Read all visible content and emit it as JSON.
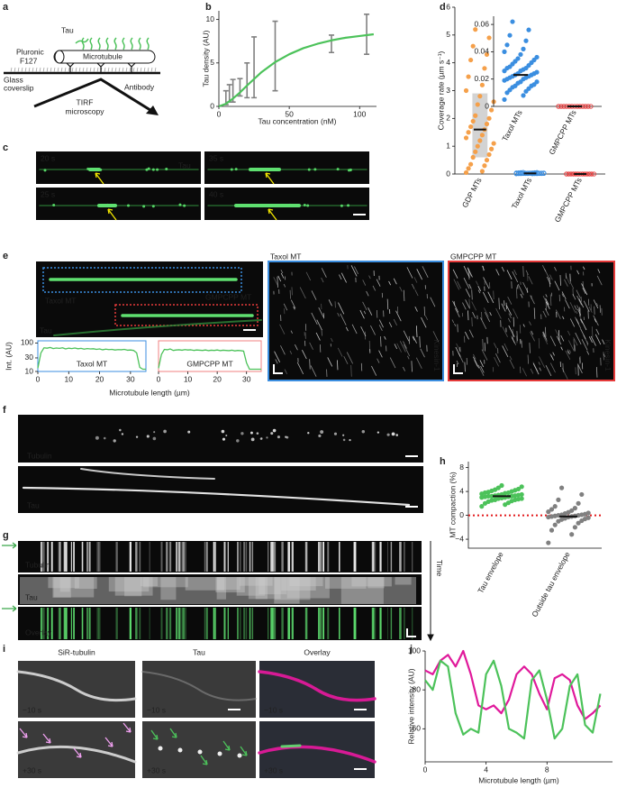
{
  "panel_labels": [
    "a",
    "b",
    "c",
    "d",
    "e",
    "f",
    "g",
    "h",
    "i",
    "j"
  ],
  "schematic": {
    "tau": "Tau",
    "pluronic": "Pluronic",
    "f127": "F127",
    "microtubule": "Microtubule",
    "coverslip_1": "Glass",
    "coverslip_2": "coverslip",
    "antibody": "Antibody",
    "tirf_1": "TIRF",
    "tirf_2": "microscopy"
  },
  "timelapse_c": {
    "times": [
      "20 s",
      "35 s",
      "25 s",
      "40 s"
    ],
    "channel": "Tau"
  },
  "image_e": {
    "taxol": "Taxol MT",
    "gmpcpp": "GMPCPP MT",
    "channel": "Tau",
    "kymo_titles": [
      "Taxol MT",
      "GMPCPP MT"
    ],
    "kymo_channel": [
      "Kinesin-1",
      "Kinesin-1"
    ]
  },
  "image_f": {
    "channels": [
      "Tubulin",
      "Tau"
    ]
  },
  "kymo_g": {
    "channels": [
      "Tubulin",
      "Tau",
      "Overlay"
    ],
    "time": "Time"
  },
  "image_i": {
    "columns": [
      "SiR-tubulin",
      "Tau",
      "Overlay"
    ],
    "times": [
      "−10 s",
      "+30 s"
    ]
  },
  "chart_data": [
    {
      "type": "line",
      "xlabel": "Tau concentration (nM)",
      "ylabel": "Tau density (AU)",
      "xlim": [
        0,
        112
      ],
      "ylim": [
        0,
        11
      ],
      "xticks": [
        0,
        50,
        100
      ],
      "yticks": [
        0,
        5,
        10
      ],
      "series": [
        {
          "style": "errorbar",
          "color": "#808080",
          "x": [
            5,
            7.5,
            10,
            15,
            20,
            25,
            40,
            80,
            105
          ],
          "values": [
            1.0,
            1.5,
            1.8,
            2.2,
            3.0,
            4.5,
            5.8,
            7.2,
            8.3
          ],
          "errors": [
            0.8,
            1.0,
            1.3,
            1.0,
            2.0,
            3.5,
            4.0,
            1.0,
            2.3
          ]
        },
        {
          "style": "line",
          "color": "#4cc25a",
          "x": [
            0,
            5,
            10,
            15,
            20,
            30,
            40,
            50,
            60,
            70,
            80,
            90,
            100,
            110
          ],
          "values": [
            0,
            0.3,
            0.9,
            1.6,
            2.4,
            3.9,
            5.1,
            6.0,
            6.7,
            7.2,
            7.6,
            7.9,
            8.1,
            8.3
          ]
        }
      ]
    },
    {
      "type": "strip",
      "ylabel": "Coverage rate (µm s⁻¹)",
      "ylim": [
        0,
        6
      ],
      "yticks": [
        0,
        1,
        2,
        3,
        4,
        5,
        6
      ],
      "categories": [
        "GDP MTs",
        "Taxol MTs",
        "GMPCPP MTs"
      ],
      "groups": [
        {
          "color": "#f5a04a",
          "hollow": false,
          "median": 1.6,
          "box": [
            0.6,
            2.9
          ],
          "values": [
            0.05,
            0.1,
            0.2,
            0.3,
            0.35,
            0.5,
            0.6,
            0.7,
            0.8,
            0.9,
            1.0,
            1.1,
            1.2,
            1.3,
            1.4,
            1.5,
            1.6,
            1.7,
            1.8,
            1.9,
            2.0,
            2.1,
            2.3,
            2.5,
            2.6,
            2.8,
            3.0,
            3.2,
            3.5,
            3.8,
            4.1,
            4.3,
            4.6,
            4.9,
            5.2
          ]
        },
        {
          "color": "#3b8ee0",
          "hollow": true,
          "median": 0.023,
          "values": [
            0.005,
            0.008,
            0.01,
            0.011,
            0.012,
            0.013,
            0.014,
            0.015,
            0.015,
            0.016,
            0.017,
            0.018,
            0.018,
            0.019,
            0.02,
            0.02,
            0.021,
            0.021,
            0.022,
            0.022,
            0.023,
            0.023,
            0.024,
            0.024,
            0.025,
            0.026,
            0.026,
            0.027,
            0.028,
            0.028,
            0.029,
            0.03,
            0.031,
            0.032,
            0.033,
            0.034,
            0.035,
            0.036,
            0.038,
            0.04,
            0.042,
            0.045,
            0.048,
            0.052,
            0.056,
            0.062
          ]
        },
        {
          "color": "#e63a3a",
          "hollow": true,
          "median": 0,
          "values": [
            0,
            0,
            0,
            0,
            0,
            0,
            0,
            0,
            0,
            0,
            0,
            0,
            0,
            0,
            0,
            0,
            0,
            0,
            0,
            0,
            0,
            0,
            0,
            0
          ]
        }
      ]
    },
    {
      "type": "strip",
      "ylim": [
        0,
        0.066
      ],
      "yticks": [
        0,
        0.02,
        0.04,
        0.06
      ],
      "categories": [
        "Taxol MTs",
        "GMPCPP MTs"
      ],
      "groups": [
        {
          "color": "#3b8ee0",
          "hollow": false,
          "median": 0.023,
          "values": [
            0.005,
            0.008,
            0.01,
            0.011,
            0.012,
            0.013,
            0.014,
            0.015,
            0.015,
            0.016,
            0.017,
            0.018,
            0.018,
            0.019,
            0.02,
            0.02,
            0.021,
            0.021,
            0.022,
            0.022,
            0.023,
            0.023,
            0.024,
            0.024,
            0.025,
            0.026,
            0.026,
            0.027,
            0.028,
            0.028,
            0.029,
            0.03,
            0.031,
            0.032,
            0.033,
            0.034,
            0.035,
            0.036,
            0.038,
            0.04,
            0.042,
            0.045,
            0.048,
            0.052,
            0.056,
            0.062
          ]
        },
        {
          "color": "#e63a3a",
          "hollow": true,
          "median": 0,
          "values": [
            0,
            0,
            0,
            0,
            0,
            0,
            0,
            0,
            0,
            0,
            0,
            0,
            0,
            0,
            0,
            0,
            0,
            0,
            0,
            0,
            0,
            0,
            0,
            0
          ]
        }
      ]
    },
    {
      "type": "line",
      "label": "Taxol MT",
      "label_color": "#3b8ee0",
      "frame": "#3b8ee0",
      "log": true,
      "xlabel": "Microtubule length (µm)",
      "ylabel": "Int. (AU)",
      "xlim": [
        0,
        35
      ],
      "ylim": [
        10,
        120
      ],
      "xticks": [
        0,
        10,
        20,
        30
      ],
      "yticks": [
        10,
        30,
        100
      ],
      "series": [
        {
          "style": "line",
          "color": "#4cc25a",
          "x": [
            0,
            1,
            2,
            3,
            4,
            5,
            6,
            7,
            8,
            9,
            10,
            11,
            12,
            13,
            14,
            15,
            16,
            17,
            18,
            19,
            20,
            21,
            22,
            23,
            24,
            25,
            26,
            27,
            28,
            29,
            30,
            31,
            32,
            33,
            34,
            35
          ],
          "values": [
            13,
            45,
            68,
            66,
            70,
            64,
            67,
            65,
            68,
            62,
            66,
            64,
            67,
            63,
            65,
            61,
            64,
            62,
            63,
            60,
            62,
            58,
            61,
            59,
            60,
            57,
            59,
            58,
            60,
            56,
            57,
            55,
            45,
            14,
            12,
            12
          ]
        }
      ]
    },
    {
      "type": "line",
      "label": "GMPCPP MT",
      "label_color": "#e63a3a",
      "frame": "#f08080",
      "log": true,
      "xlim": [
        0,
        35
      ],
      "ylim": [
        10,
        120
      ],
      "xticks": [
        0,
        10,
        20,
        30
      ],
      "series": [
        {
          "style": "line",
          "color": "#4cc25a",
          "x": [
            0,
            1,
            2,
            3,
            4,
            5,
            6,
            7,
            8,
            9,
            10,
            11,
            12,
            13,
            14,
            15,
            16,
            17,
            18,
            19,
            20,
            21,
            22,
            23,
            24,
            25,
            26,
            27,
            28,
            29,
            30,
            31,
            32,
            33,
            34,
            35
          ],
          "values": [
            13,
            40,
            60,
            58,
            62,
            55,
            57,
            58,
            56,
            59,
            57,
            58,
            55,
            57,
            56,
            55,
            57,
            54,
            56,
            55,
            57,
            54,
            56,
            55,
            54,
            56,
            53,
            55,
            54,
            52,
            20,
            12,
            12,
            12,
            12,
            12
          ]
        }
      ]
    },
    {
      "type": "strip",
      "ylabel": "MT compaction (%)",
      "ylim": [
        -5.5,
        9
      ],
      "yticks": [
        {
          "value": -4,
          "label": "−4"
        },
        0,
        4,
        8
      ],
      "refline": 0,
      "refline_color": "#e31a1c",
      "categories": [
        "Tau envelope",
        "Outside tau envelope"
      ],
      "groups": [
        {
          "color": "#4cc25a",
          "hollow": false,
          "median": 3.2,
          "values": [
            1.5,
            1.8,
            2.0,
            2.1,
            2.3,
            2.4,
            2.5,
            2.6,
            2.6,
            2.7,
            2.8,
            2.8,
            2.9,
            3.0,
            3.0,
            3.1,
            3.1,
            3.2,
            3.2,
            3.2,
            3.3,
            3.3,
            3.4,
            3.4,
            3.5,
            3.5,
            3.6,
            3.7,
            3.8,
            3.8,
            3.9,
            4.0,
            4.1,
            4.2,
            4.3,
            4.4,
            4.6,
            4.8,
            5.0
          ]
        },
        {
          "color": "#808080",
          "hollow": false,
          "median": -0.2,
          "values": [
            -4.6,
            -3.2,
            -2.5,
            -2.0,
            -1.6,
            -1.3,
            -1.0,
            -0.9,
            -0.7,
            -0.6,
            -0.5,
            -0.4,
            -0.3,
            -0.3,
            -0.2,
            -0.2,
            -0.1,
            -0.1,
            0,
            0,
            0.1,
            0.1,
            0.2,
            0.3,
            0.4,
            0.5,
            0.6,
            0.8,
            1.0,
            1.2,
            1.5,
            2.0,
            2.6,
            3.5,
            4.6
          ]
        }
      ]
    },
    {
      "type": "line",
      "xlabel": "Microtubule length (µm)",
      "ylabel": "Relative intensity (AU)",
      "xlim": [
        0,
        12.3
      ],
      "ylim": [
        43,
        100
      ],
      "xticks": [
        0,
        4,
        8
      ],
      "yticks": [
        60,
        80,
        100
      ],
      "series": [
        {
          "style": "line",
          "color": "#e0199b",
          "x": [
            0,
            0.5,
            1,
            1.5,
            2,
            2.5,
            3,
            3.5,
            4,
            4.5,
            5,
            5.5,
            6,
            6.5,
            7,
            7.5,
            8,
            8.5,
            9,
            9.5,
            10,
            10.5,
            11,
            11.5
          ],
          "values": [
            90,
            88,
            95,
            98,
            92,
            100,
            88,
            72,
            70,
            72,
            68,
            75,
            88,
            92,
            88,
            78,
            70,
            86,
            88,
            85,
            72,
            65,
            68,
            72
          ]
        },
        {
          "style": "line",
          "color": "#4cc25a",
          "x": [
            0,
            0.5,
            1,
            1.5,
            2,
            2.5,
            3,
            3.5,
            4,
            4.5,
            5,
            5.5,
            6,
            6.5,
            7,
            7.5,
            8,
            8.5,
            9,
            9.5,
            10,
            10.5,
            11,
            11.5
          ],
          "values": [
            85,
            80,
            95,
            92,
            68,
            57,
            60,
            58,
            88,
            95,
            82,
            60,
            58,
            55,
            85,
            90,
            75,
            55,
            60,
            82,
            88,
            62,
            58,
            78
          ]
        }
      ]
    }
  ]
}
